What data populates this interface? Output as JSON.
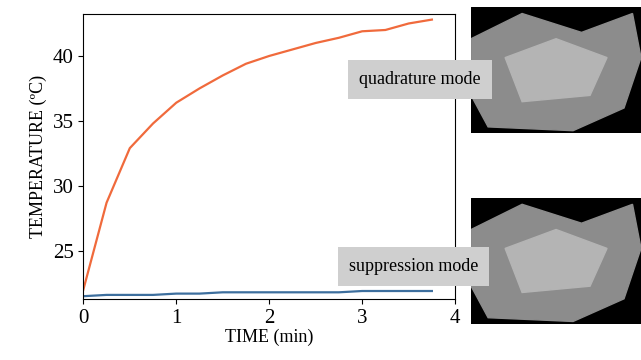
{
  "chart_data": {
    "type": "line",
    "x_label": "TIME (min)",
    "y_label": "TEMPERATURE (ºC)",
    "x": [
      0,
      0.25,
      0.5,
      0.75,
      1,
      1.25,
      1.5,
      1.75,
      2,
      2.25,
      2.5,
      2.75,
      3,
      3.25,
      3.5,
      3.75
    ],
    "series": [
      {
        "name": "quadrature mode",
        "color": "#f06a3c",
        "values": [
          22.0,
          28.7,
          32.9,
          34.8,
          36.4,
          37.5,
          38.5,
          39.4,
          40.0,
          40.5,
          41.0,
          41.4,
          41.9,
          42.0,
          42.5,
          42.8
        ]
      },
      {
        "name": "suppression mode",
        "color": "#3d6f9e",
        "values": [
          21.5,
          21.6,
          21.6,
          21.6,
          21.7,
          21.7,
          21.8,
          21.8,
          21.8,
          21.8,
          21.8,
          21.8,
          21.9,
          21.9,
          21.9,
          21.9
        ]
      }
    ],
    "xlim": [
      0,
      4
    ],
    "xticks": [
      0,
      1,
      2,
      3,
      4
    ],
    "ylim": [
      21.3,
      43.2
    ],
    "yticks": [
      25,
      30,
      35,
      40
    ],
    "grid": false
  }
}
